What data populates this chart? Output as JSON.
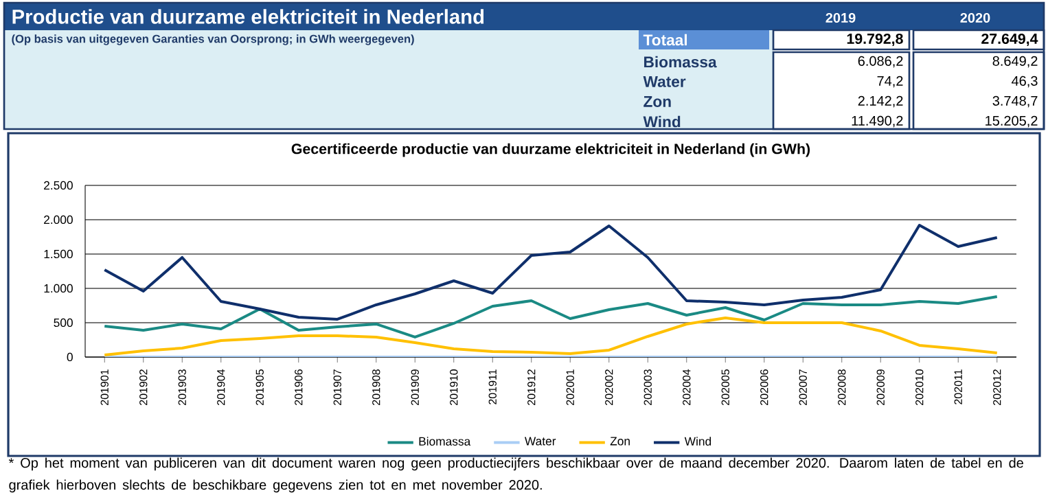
{
  "chart_data": {
    "type": "line",
    "title": "Gecertificeerde productie van duurzame elektriciteit in Nederland (in GWh)",
    "categories": [
      "201901",
      "201902",
      "201903",
      "201904",
      "201905",
      "201906",
      "201907",
      "201908",
      "201909",
      "201910",
      "201911",
      "201912",
      "202001",
      "202002",
      "202003",
      "202004",
      "202005",
      "202006",
      "202007",
      "202008",
      "202009",
      "202010",
      "202011",
      "202012"
    ],
    "series": [
      {
        "name": "Biomassa",
        "color": "#1a8a84",
        "values": [
          450,
          390,
          480,
          410,
          700,
          390,
          440,
          480,
          290,
          490,
          740,
          820,
          560,
          690,
          780,
          610,
          720,
          540,
          780,
          760,
          760,
          810,
          780,
          880
        ]
      },
      {
        "name": "Water",
        "color": "#a9cdf5",
        "values": [
          0,
          0,
          0,
          0,
          0,
          0,
          0,
          0,
          0,
          0,
          0,
          0,
          0,
          0,
          0,
          0,
          0,
          0,
          0,
          0,
          0,
          0,
          0,
          0
        ]
      },
      {
        "name": "Zon",
        "color": "#ffc000",
        "values": [
          30,
          90,
          130,
          240,
          270,
          310,
          310,
          290,
          210,
          120,
          80,
          70,
          50,
          100,
          300,
          480,
          570,
          500,
          500,
          500,
          380,
          170,
          120,
          60
        ]
      },
      {
        "name": "Wind",
        "color": "#0f2f6b",
        "values": [
          1270,
          960,
          1450,
          810,
          700,
          580,
          550,
          760,
          920,
          1110,
          930,
          1480,
          1530,
          1910,
          1450,
          820,
          800,
          760,
          830,
          870,
          980,
          1920,
          1610,
          1740
        ]
      }
    ],
    "ylim": [
      0,
      2500
    ],
    "yticks": [
      {
        "value": 0,
        "label": "0"
      },
      {
        "value": 500,
        "label": "500"
      },
      {
        "value": 1000,
        "label": "1.000"
      },
      {
        "value": 1500,
        "label": "1.500"
      },
      {
        "value": 2000,
        "label": "2.000"
      },
      {
        "value": 2500,
        "label": "2.500"
      }
    ],
    "grid": "y",
    "legend": "bottom",
    "marker": "none",
    "line_style": "solid",
    "annotations": [
      "Productie van duurzame elektriciteit in Nederland",
      "(Op basis van uitgegeven  Garanties van Oorsprong; in GWh weergegeven)",
      "2019",
      "2020",
      "Totaal",
      "19.792,8",
      "27.649,4",
      "Biomassa",
      "6.086,2",
      "8.649,2",
      "Water",
      "74,2",
      "46,3",
      "Zon",
      "2.142,2",
      "3.748,7",
      "Wind",
      "11.490,2",
      "15.205,2",
      "* Op het moment van publiceren van dit document waren nog geen productiecijfers beschikbaar over de maand december 2020. Daarom laten de tabel en de grafiek hierboven slechts de beschikbare gegevens zien tot en met november 2020."
    ]
  }
}
